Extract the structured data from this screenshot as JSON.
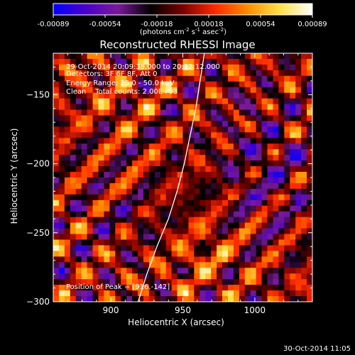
{
  "colorbar": {
    "ticks": [
      "-0.00089",
      "-0.00054",
      "-0.00018",
      "0.00018",
      "0.00054",
      "0.00089"
    ],
    "unit_label": "(photons cm",
    "unit_exp1": "-2",
    "unit_mid": " s",
    "unit_exp2": "-1",
    "unit_mid2": " asec",
    "unit_exp3": "-2",
    "unit_close": ")",
    "colors": [
      "#0000ff",
      "#4a00c8",
      "#7a1a9a",
      "#000000",
      "#7a0000",
      "#ff2a00",
      "#ff8c00",
      "#ffe14a",
      "#ffffff"
    ]
  },
  "footer_timestamp": "30-Oct-2014 11:05",
  "chart_data": {
    "type": "heatmap",
    "title": "Reconstructed RHESSI Image",
    "xlabel": "Heliocentric X (arcsec)",
    "ylabel": "Heliocentric Y (arcsec)",
    "xlim": [
      860,
      1040
    ],
    "ylim": [
      -300,
      -120
    ],
    "x_ticks": [
      900,
      950,
      1000
    ],
    "y_ticks": [
      -300,
      -250,
      -200,
      -150
    ],
    "x_tick_labels": [
      "900",
      "950",
      "1000"
    ],
    "y_tick_labels": [
      "−300",
      "−250",
      "−200",
      "−150"
    ],
    "value_range": [
      -0.00089,
      0.00089
    ],
    "annotations": [
      "29-Oct-2014 20:09:38.000 to 20:12:12.000",
      "Detectors: 3F 6F 8F, Att 0",
      "Energy Range: 25.0 - 50.0 keV",
      "Clean    Total counts: 2.00E+03"
    ],
    "peak_text": "Position of Peak = [916,-142]",
    "limb_curve": [
      [
        919,
        -300
      ],
      [
        925,
        -280
      ],
      [
        932,
        -260
      ],
      [
        940,
        -240
      ],
      [
        946,
        -220
      ],
      [
        951,
        -200
      ],
      [
        955,
        -180
      ],
      [
        959,
        -160
      ],
      [
        962,
        -140
      ],
      [
        965,
        -120
      ]
    ]
  }
}
